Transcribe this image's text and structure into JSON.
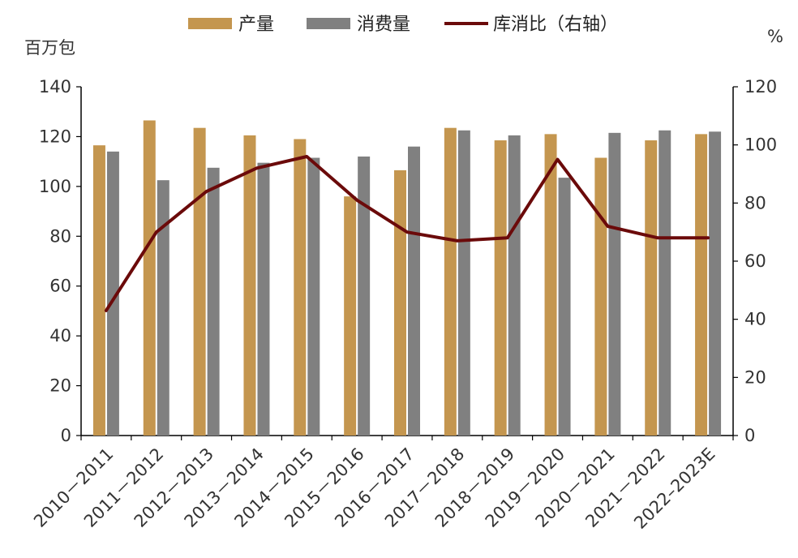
{
  "chart_data": {
    "type": "bar",
    "title": "",
    "left_unit": "百万包",
    "right_unit": "%",
    "categories": [
      "2010－2011",
      "2011－2012",
      "2012－2013",
      "2013－2014",
      "2014－2015",
      "2015－2016",
      "2016－2017",
      "2017－2018",
      "2018－2019",
      "2019－2020",
      "2020－2021",
      "2021－2022",
      "2022–2023E"
    ],
    "series": [
      {
        "name": "产量",
        "type": "bar",
        "axis": "left",
        "color": "#C4964F",
        "values": [
          116.5,
          126.5,
          123.5,
          120.5,
          119.0,
          96.0,
          106.5,
          123.5,
          118.5,
          121.0,
          111.5,
          118.5,
          121.0
        ]
      },
      {
        "name": "消费量",
        "type": "bar",
        "axis": "left",
        "color": "#808080",
        "values": [
          114.0,
          102.5,
          107.5,
          109.5,
          111.5,
          112.0,
          116.0,
          122.5,
          120.5,
          103.5,
          121.5,
          122.5,
          122.0
        ]
      },
      {
        "name": "库消比（右轴）",
        "type": "line",
        "axis": "right",
        "color": "#6B0A0A",
        "values": [
          43,
          70,
          84,
          92,
          96,
          81,
          70,
          67,
          68,
          95,
          72,
          68,
          68
        ]
      }
    ],
    "left_axis": {
      "min": 0,
      "max": 140,
      "ticks": [
        0,
        20,
        40,
        60,
        80,
        100,
        120,
        140
      ]
    },
    "right_axis": {
      "min": 0,
      "max": 120,
      "ticks": [
        0,
        20,
        40,
        60,
        80,
        100,
        120
      ]
    },
    "legend_position": "top-center",
    "grid": false
  }
}
